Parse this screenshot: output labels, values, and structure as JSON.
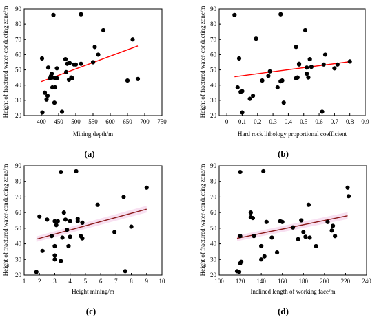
{
  "colors": {
    "points": "#000000",
    "trendline": "#ff0000",
    "trendline_c": "#8b1a1a",
    "band": "#f6d8ee",
    "axis": "#000000"
  },
  "chart_data": [
    {
      "type": "scatter",
      "panel_label": "(a)",
      "xlabel": "Mining depth/m",
      "ylabel": "Height of fractured water-conducting zone/m",
      "xlim": [
        350,
        750
      ],
      "ylim": [
        20,
        90
      ],
      "xticks": [
        400,
        450,
        500,
        550,
        600,
        650,
        700,
        750
      ],
      "yticks": [
        20,
        30,
        40,
        50,
        60,
        70,
        80,
        90
      ],
      "x": [
        402,
        403,
        410,
        415,
        418,
        420,
        425,
        428,
        430,
        432,
        432,
        435,
        438,
        440,
        440,
        445,
        445,
        460,
        470,
        472,
        475,
        480,
        482,
        487,
        490,
        495,
        500,
        515,
        515,
        550,
        555,
        565,
        580,
        650,
        665,
        680
      ],
      "y": [
        57.5,
        22,
        35,
        30.5,
        33,
        51.5,
        44.5,
        46,
        47.5,
        38.5,
        45,
        86,
        28.5,
        38.5,
        44.5,
        51,
        44.5,
        22.5,
        57,
        48.5,
        54,
        43.5,
        54.5,
        45,
        44.5,
        53.5,
        53.5,
        86.5,
        54,
        55,
        65,
        60,
        76,
        43,
        70,
        44
      ],
      "trendline": {
        "x": [
          400,
          680
        ],
        "y": [
          42.3,
          65.7
        ]
      }
    },
    {
      "type": "scatter",
      "panel_label": "(b)",
      "xlabel": "Hard rock lithology proportional coefficient",
      "ylabel": "Height of fractured water-conducting zone/m",
      "xlim": [
        -0.05,
        0.9
      ],
      "ylim": [
        20,
        90
      ],
      "xticks": [
        0.0,
        0.1,
        0.2,
        0.3,
        0.4,
        0.5,
        0.6,
        0.7,
        0.8,
        0.9
      ],
      "yticks": [
        20,
        30,
        40,
        50,
        60,
        70,
        80,
        90
      ],
      "x": [
        0.05,
        0.07,
        0.08,
        0.09,
        0.1,
        0.1,
        0.15,
        0.17,
        0.19,
        0.23,
        0.27,
        0.28,
        0.33,
        0.35,
        0.35,
        0.36,
        0.37,
        0.45,
        0.45,
        0.46,
        0.47,
        0.47,
        0.51,
        0.52,
        0.52,
        0.53,
        0.54,
        0.55,
        0.62,
        0.63,
        0.64,
        0.7,
        0.72,
        0.8
      ],
      "y": [
        86,
        38.5,
        57.5,
        35.5,
        36,
        22,
        31,
        33,
        70.5,
        43,
        46,
        49,
        38.5,
        86.5,
        42.5,
        43,
        28.5,
        65,
        44.5,
        45,
        54,
        53.5,
        76,
        47.5,
        51.5,
        45,
        57,
        52,
        22.5,
        53.5,
        60,
        51,
        53.5,
        55.5
      ],
      "trendline": {
        "x": [
          0.05,
          0.81
        ],
        "y": [
          45.5,
          55.5
        ]
      }
    },
    {
      "type": "scatter",
      "panel_label": "(c)",
      "xlabel": "Height mining/m",
      "ylabel": "Height of fractured water-conducting zone/m",
      "xlim": [
        1,
        10
      ],
      "ylim": [
        20,
        90
      ],
      "xticks": [
        1,
        2,
        3,
        4,
        5,
        6,
        7,
        8,
        9,
        10
      ],
      "yticks": [
        20,
        30,
        40,
        50,
        60,
        70,
        80,
        90
      ],
      "x": [
        1.8,
        2.0,
        2.2,
        2.5,
        2.8,
        3.0,
        3.0,
        3.0,
        3.0,
        3.1,
        3.2,
        3.4,
        3.4,
        3.5,
        3.6,
        3.7,
        3.8,
        3.9,
        4.0,
        4.0,
        4.4,
        4.5,
        4.5,
        4.7,
        4.8,
        4.8,
        5.8,
        6.9,
        7.5,
        7.6,
        8.0,
        9.0
      ],
      "y": [
        22,
        57.5,
        35.5,
        55.5,
        45,
        54.5,
        38.5,
        32.5,
        30,
        52,
        54.5,
        86,
        29,
        44,
        60,
        55.5,
        49,
        38.5,
        44.5,
        54.5,
        86.5,
        56,
        54.5,
        45,
        43.5,
        53.5,
        65,
        47.5,
        70,
        22.5,
        51,
        76
      ],
      "trendline": {
        "x": [
          1.8,
          9.0
        ],
        "y": [
          43.0,
          62.2
        ]
      }
    },
    {
      "type": "scatter",
      "panel_label": "(d)",
      "xlabel": "Inclined length of working face/m",
      "ylabel": "Height of fractured water-conducting zone/m",
      "xlim": [
        100,
        240
      ],
      "ylim": [
        20,
        90
      ],
      "xticks": [
        100,
        120,
        140,
        160,
        180,
        200,
        220,
        240
      ],
      "yticks": [
        20,
        30,
        40,
        50,
        60,
        70,
        80,
        90
      ],
      "x": [
        117,
        119,
        120,
        120,
        120,
        121,
        130,
        130,
        132,
        133,
        140,
        140,
        142,
        143,
        145,
        150,
        155,
        158,
        160,
        170,
        175,
        178,
        180,
        182,
        185,
        186,
        192,
        203,
        207,
        208,
        210,
        222,
        223
      ],
      "y": [
        22.5,
        22,
        86,
        45,
        27.5,
        28.5,
        57,
        60,
        56.5,
        45,
        30,
        38.5,
        86.5,
        32,
        54,
        44,
        34.5,
        54.5,
        54,
        50.5,
        43,
        55,
        47.5,
        44.5,
        65,
        44,
        38.5,
        54,
        48.5,
        51.5,
        45,
        76,
        70.5
      ],
      "trendline": {
        "x": [
          117,
          222
        ],
        "y": [
          43.5,
          58.0
        ]
      }
    }
  ]
}
